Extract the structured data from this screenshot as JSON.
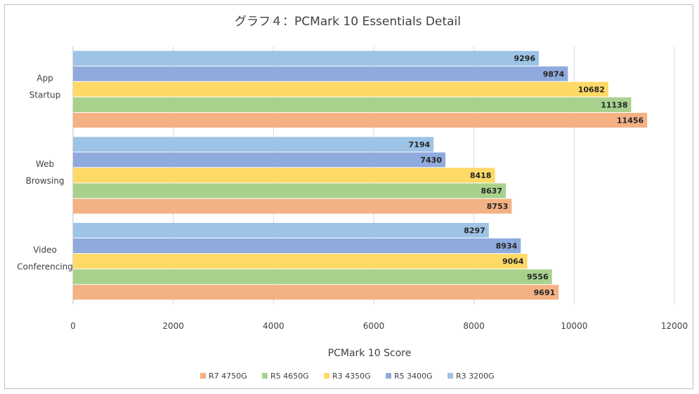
{
  "chart_data": {
    "type": "bar",
    "orientation": "horizontal",
    "title": "グラフ４：PCMark 10 Essentials Detail",
    "xlabel": "PCMark 10 Score",
    "ylabel": "",
    "xlim": [
      0,
      12000
    ],
    "x_ticks": [
      "0",
      "2000",
      "4000",
      "6000",
      "8000",
      "10000",
      "12000"
    ],
    "grid": true,
    "legend_position": "bottom",
    "categories": [
      [
        "App",
        "Startup"
      ],
      [
        "Web",
        "Browsing"
      ],
      [
        "Video",
        "Conferencing"
      ]
    ],
    "series": [
      {
        "name": "R3 3200G",
        "color": "#9dc3e6",
        "values": [
          9296,
          7194,
          8297
        ]
      },
      {
        "name": "R5 3400G",
        "color": "#8faadc",
        "values": [
          9874,
          7430,
          8934
        ]
      },
      {
        "name": "R3 4350G",
        "color": "#ffd966",
        "values": [
          10682,
          8418,
          9064
        ]
      },
      {
        "name": "R5 4650G",
        "color": "#a9d18e",
        "values": [
          11138,
          8637,
          9556
        ]
      },
      {
        "name": "R7 4750G",
        "color": "#f4b183",
        "values": [
          11456,
          8753,
          9691
        ]
      }
    ],
    "legend_order": [
      "R7 4750G",
      "R5 4650G",
      "R3 4350G",
      "R5 3400G",
      "R3 3200G"
    ]
  }
}
